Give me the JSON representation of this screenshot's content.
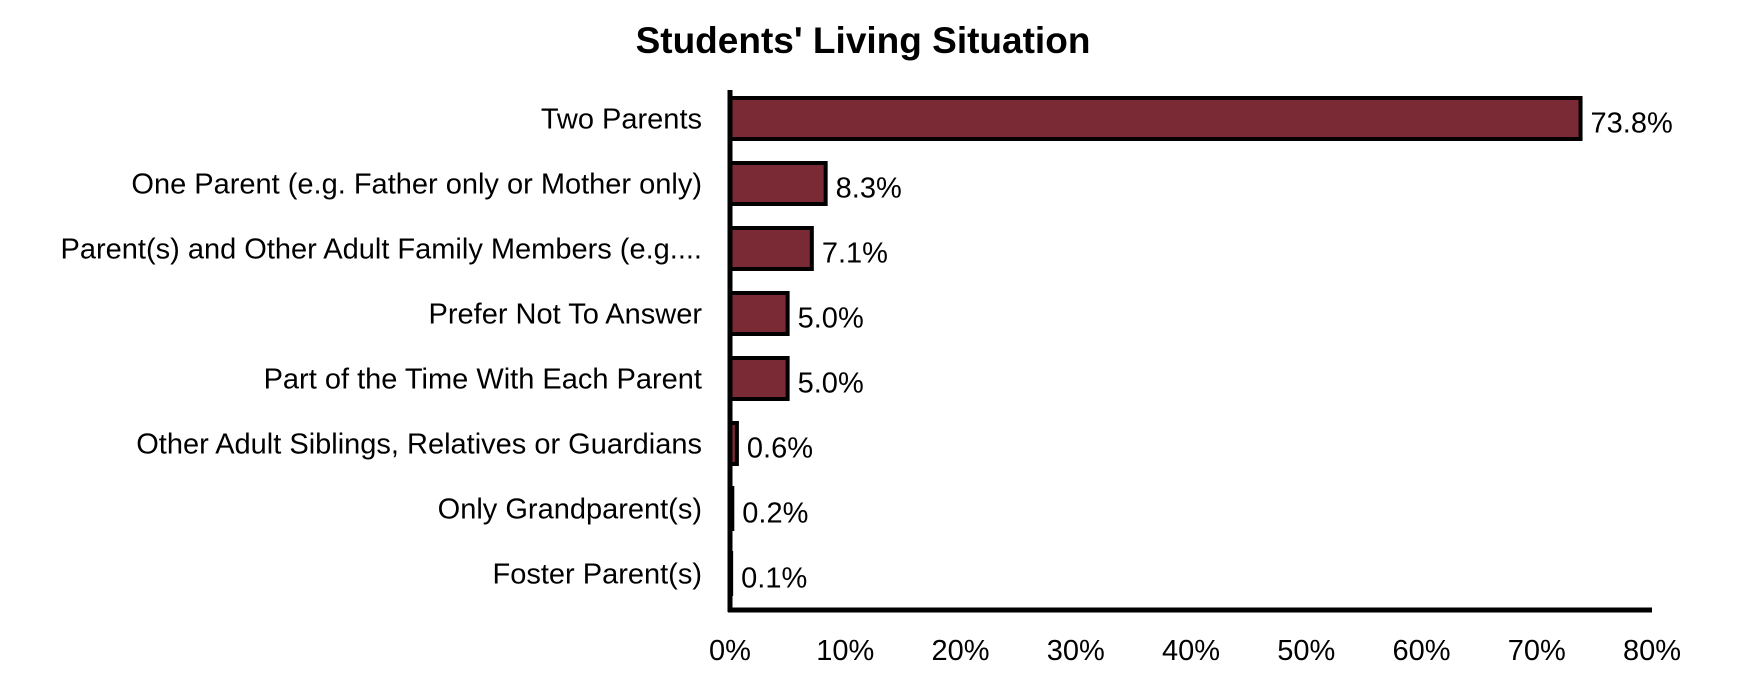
{
  "chart_data": {
    "type": "bar",
    "orientation": "horizontal",
    "title": "Students' Living Situation",
    "xlabel": "",
    "ylabel": "",
    "categories": [
      "Two Parents",
      "One Parent (e.g. Father only or Mother only)",
      "Parent(s) and Other Adult Family Members (e.g....",
      "Prefer Not To Answer",
      "Part of the Time With Each Parent",
      "Other Adult Siblings, Relatives or Guardians",
      "Only Grandparent(s)",
      "Foster Parent(s)"
    ],
    "values": [
      73.8,
      8.3,
      7.1,
      5.0,
      5.0,
      0.6,
      0.2,
      0.1
    ],
    "data_labels": [
      "73.8%",
      "8.3%",
      "7.1%",
      "5.0%",
      "5.0%",
      "0.6%",
      "0.2%",
      "0.1%"
    ],
    "xlim": [
      0,
      80
    ],
    "x_ticks": [
      0,
      10,
      20,
      30,
      40,
      50,
      60,
      70,
      80
    ],
    "x_tick_labels": [
      "0%",
      "10%",
      "20%",
      "30%",
      "40%",
      "50%",
      "60%",
      "70%",
      "80%"
    ],
    "grid": false,
    "legend": "none",
    "colors": {
      "bar_fill": "#7a2a35",
      "bar_stroke": "#000000",
      "axis": "#000000",
      "text": "#000000"
    }
  }
}
